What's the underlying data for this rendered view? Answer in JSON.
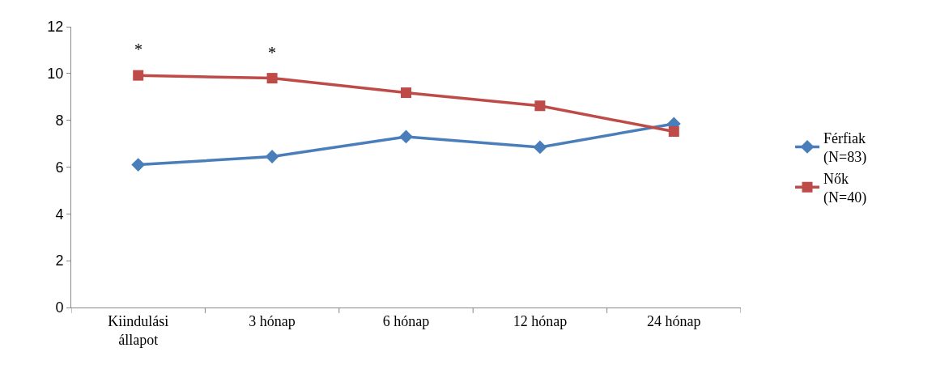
{
  "chart_data": {
    "type": "line",
    "categories": [
      "Kiindulási\nállapot",
      "3 hónap",
      "6 hónap",
      "12 hónap",
      "24 hónap"
    ],
    "series": [
      {
        "name": "Férfiak\n(N=83)",
        "color": "#4a7ebb",
        "marker": "diamond",
        "values": [
          6.1,
          6.45,
          7.3,
          6.85,
          7.85
        ]
      },
      {
        "name": "Nők\n(N=40)",
        "color": "#be4b48",
        "marker": "square",
        "values": [
          9.92,
          9.8,
          9.18,
          8.62,
          7.52
        ]
      }
    ],
    "ylim": [
      0,
      12
    ],
    "yticks": [
      0,
      2,
      4,
      6,
      8,
      10,
      12
    ],
    "annotations": [
      "*",
      "*"
    ],
    "grid": false,
    "legend": "right",
    "line_style": "solid"
  }
}
